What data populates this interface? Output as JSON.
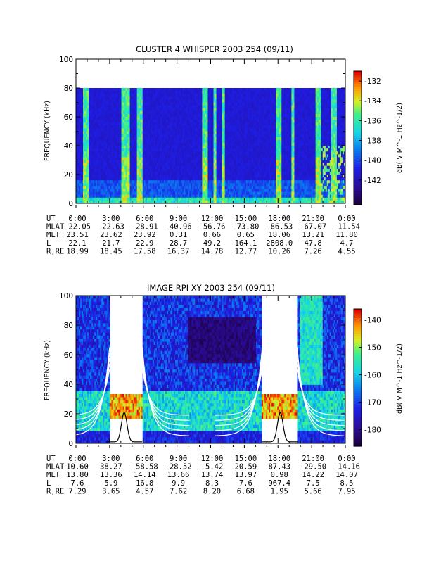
{
  "chart_data": [
    {
      "type": "heatmap",
      "title": "CLUSTER 4 WHISPER 2003 254 (09/11)",
      "ylabel": "FREQUENCY (kHz)",
      "ylim": [
        0,
        100
      ],
      "y_ticks": [
        "0",
        "20",
        "40",
        "60",
        "80",
        "100"
      ],
      "data_top_khz": 80,
      "colorbar": {
        "label": "dB( V M^-1 Hz^-1/2)",
        "ticks": [
          "-132",
          "-134",
          "-136",
          "-138",
          "-140",
          "-142"
        ],
        "tick_values": [
          -132,
          -134,
          -136,
          -138,
          -140,
          -142
        ],
        "range": [
          -144.5,
          -131
        ]
      },
      "bright_bands_hours": [
        [
          0.6,
          1.1
        ],
        [
          4.0,
          4.8
        ],
        [
          5.4,
          5.9
        ],
        [
          11.3,
          11.8
        ],
        [
          12.3,
          12.5
        ],
        [
          13.0,
          13.3
        ],
        [
          17.8,
          18.3
        ],
        [
          19.2,
          19.5
        ],
        [
          21.4,
          21.8
        ],
        [
          22.7,
          23.2
        ]
      ],
      "ephemeris": {
        "rows": [
          {
            "label": "UT",
            "values": [
              "0:00",
              "3:00",
              "6:00",
              "9:00",
              "12:00",
              "15:00",
              "18:00",
              "21:00",
              "0:00"
            ]
          },
          {
            "label": "MLAT",
            "values": [
              "-22.05",
              "-22.63",
              "-28.91",
              "-40.96",
              "-56.76",
              "-73.80",
              "-86.53",
              "-67.07",
              "-11.54"
            ]
          },
          {
            "label": "MLT",
            "values": [
              "23.51",
              "23.62",
              "23.92",
              "0.31",
              "0.66",
              "0.65",
              "18.06",
              "13.21",
              "11.80"
            ]
          },
          {
            "label": "L",
            "values": [
              "22.1",
              "21.7",
              "22.9",
              "28.7",
              "49.2",
              "164.1",
              "2808.0",
              "47.8",
              "4.7"
            ]
          },
          {
            "label": "R,RE",
            "values": [
              "18.99",
              "18.45",
              "17.58",
              "16.37",
              "14.78",
              "12.77",
              "10.26",
              "7.26",
              "4.55"
            ]
          }
        ]
      }
    },
    {
      "type": "heatmap",
      "title": "IMAGE RPI XY 2003 254 (09/11)",
      "ylabel": "FREQUENCY (kHz)",
      "ylim": [
        0,
        100
      ],
      "y_ticks": [
        "0",
        "20",
        "40",
        "60",
        "80",
        "100"
      ],
      "data_gaps_hours": [
        [
          3.0,
          5.9
        ],
        [
          16.6,
          19.7
        ]
      ],
      "colorbar": {
        "label": "dB( V M^-1 Hz^-1/2)",
        "ticks": [
          "-140",
          "-150",
          "-160",
          "-170",
          "-180"
        ],
        "tick_values": [
          -140,
          -150,
          -160,
          -170,
          -180
        ],
        "range": [
          -186,
          -136
        ]
      },
      "ephemeris": {
        "rows": [
          {
            "label": "UT",
            "values": [
              "0:00",
              "3:00",
              "6:00",
              "9:00",
              "12:00",
              "15:00",
              "18:00",
              "21:00",
              "0:00"
            ]
          },
          {
            "label": "MLAT",
            "values": [
              "10.60",
              "38.27",
              "-58.58",
              "-28.52",
              "-5.42",
              "20.59",
              "87.43",
              "-29.50",
              "-14.16"
            ]
          },
          {
            "label": "MLT",
            "values": [
              "13.80",
              "13.36",
              "14.14",
              "13.66",
              "13.74",
              "13.97",
              "0.98",
              "14.22",
              "14.07"
            ]
          },
          {
            "label": "L",
            "values": [
              "7.6",
              "5.9",
              "16.8",
              "9.9",
              "8.3",
              "7.6",
              "967.4",
              "7.5",
              "8.5"
            ]
          },
          {
            "label": "R,RE",
            "values": [
              "7.29",
              "3.65",
              "4.57",
              "7.62",
              "8.20",
              "6.68",
              "1.95",
              "5.66",
              "7.95"
            ]
          }
        ]
      }
    }
  ]
}
